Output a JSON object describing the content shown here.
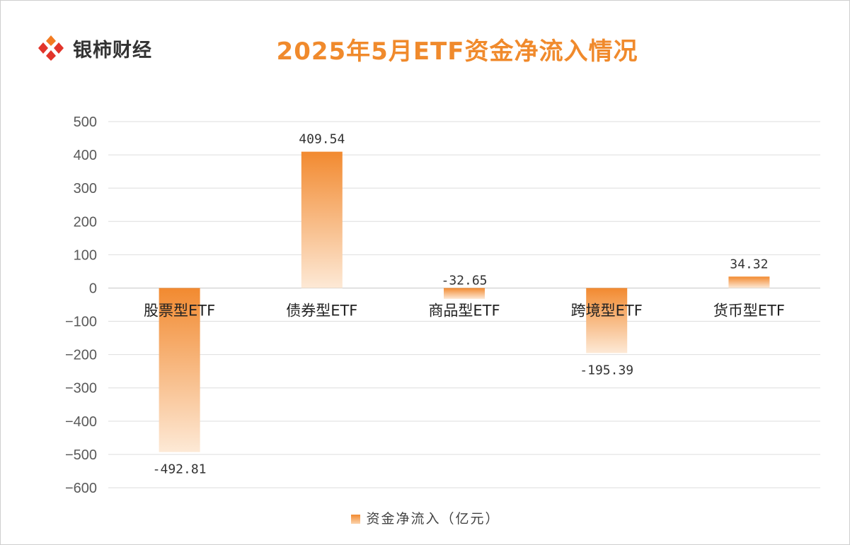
{
  "brand": {
    "name": "银柿财经",
    "icon": "diamond-cluster-logo-icon",
    "colors": {
      "red": "#e2342a",
      "orange": "#f27b22"
    }
  },
  "chart_data": {
    "type": "bar",
    "title": "2025年5月ETF资金净流入情况",
    "categories": [
      "股票型ETF",
      "债券型ETF",
      "商品型ETF",
      "跨境型ETF",
      "货币型ETF"
    ],
    "series": [
      {
        "name": "资金净流入（亿元）",
        "values": [
          -492.81,
          409.54,
          -32.65,
          -195.39,
          34.32
        ]
      }
    ],
    "data_labels": [
      "-492.81",
      "409.54",
      "-32.65",
      "-195.39",
      "34.32"
    ],
    "ylim": [
      -600,
      500
    ],
    "yticks": [
      "500",
      "400",
      "300",
      "200",
      "100",
      "0",
      "-100",
      "-200",
      "-300",
      "-400",
      "-500",
      "-600"
    ],
    "grid": true,
    "legend": "bottom",
    "bar_color_top": "#f28a30",
    "bar_color_bottom": "#fde9d6",
    "title_color": "#f08a2c"
  }
}
